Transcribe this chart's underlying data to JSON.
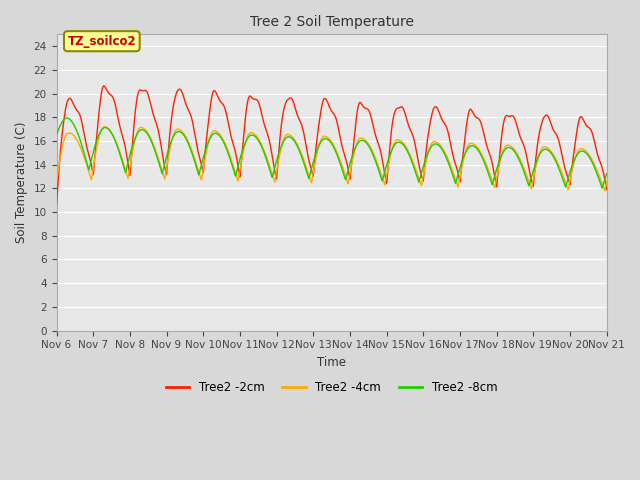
{
  "title": "Tree 2 Soil Temperature",
  "xlabel": "Time",
  "ylabel": "Soil Temperature (C)",
  "annotation": "TZ_soilco2",
  "ylim": [
    0,
    25
  ],
  "yticks": [
    0,
    2,
    4,
    6,
    8,
    10,
    12,
    14,
    16,
    18,
    20,
    22,
    24
  ],
  "xtick_labels": [
    "Nov 6",
    "Nov 7",
    "Nov 8",
    "Nov 9",
    "Nov 10",
    "Nov 11",
    "Nov 12",
    "Nov 13",
    "Nov 14",
    "Nov 15",
    "Nov 16",
    "Nov 17",
    "Nov 18",
    "Nov 19",
    "Nov 20",
    "Nov 21"
  ],
  "line_2cm_color": "#ff2200",
  "line_4cm_color": "#ffaa00",
  "line_8cm_color": "#22cc00",
  "legend_labels": [
    "Tree2 -2cm",
    "Tree2 -4cm",
    "Tree2 -8cm"
  ],
  "fig_bg": "#d8d8d8",
  "plot_bg": "#e8e8e8"
}
